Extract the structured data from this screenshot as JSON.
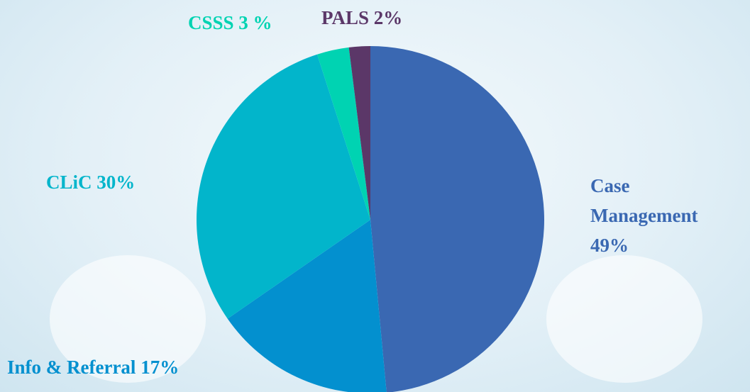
{
  "chart_data": {
    "type": "pie",
    "categories": [
      "Case Management",
      "Info & Referral",
      "CLiC",
      "CSSS",
      "PALS"
    ],
    "values": [
      49,
      17,
      30,
      3,
      2
    ],
    "value_labels": [
      "49%",
      "17%",
      "30%",
      "3 %",
      "2%"
    ],
    "colors": [
      "#3a68b2",
      "#0390cf",
      "#02b5cb",
      "#00d3b2",
      "#5b3768"
    ]
  }
}
